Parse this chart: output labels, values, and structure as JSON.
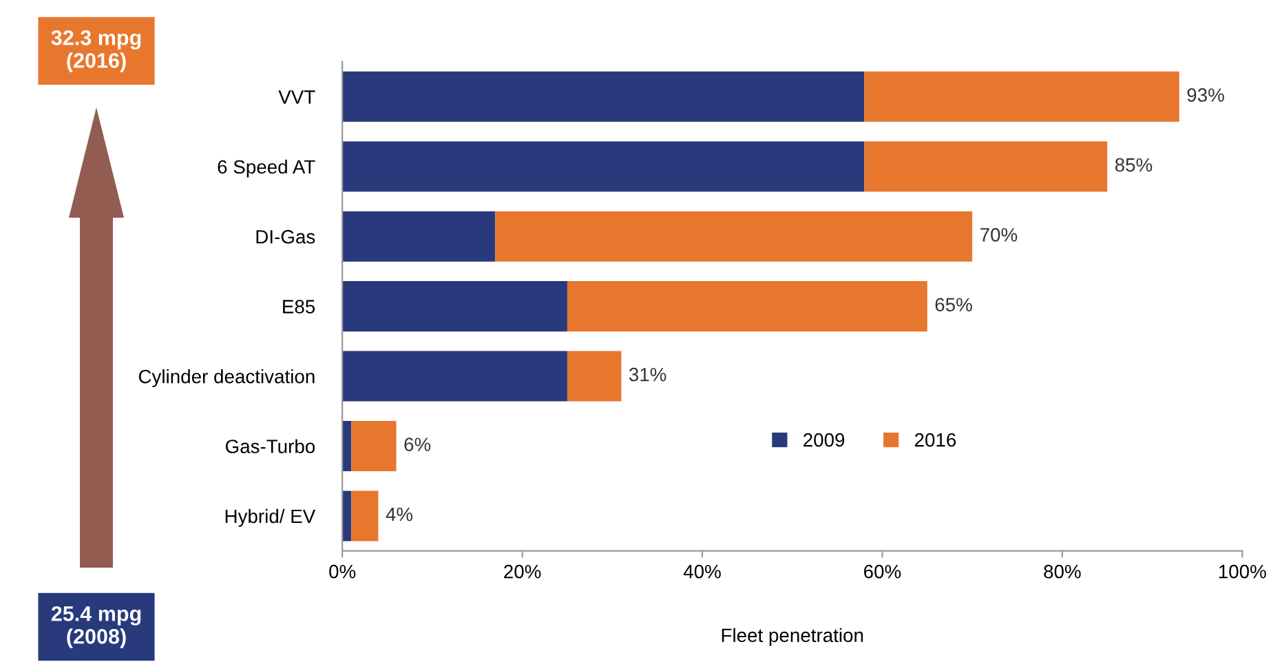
{
  "chart_data": {
    "type": "bar",
    "orientation": "horizontal",
    "stacked": true,
    "categories": [
      "VVT",
      "6 Speed AT",
      "DI-Gas",
      "E85",
      "Cylinder deactivation",
      "Gas-Turbo",
      "Hybrid/ EV"
    ],
    "series": [
      {
        "name": "2009",
        "color": "#283a7c",
        "values": [
          58,
          58,
          17,
          25,
          25,
          1,
          1
        ]
      },
      {
        "name": "2016",
        "color": "#e8772e",
        "values": [
          35,
          27,
          53,
          40,
          6,
          5,
          3
        ]
      }
    ],
    "totals": [
      "93%",
      "85%",
      "70%",
      "65%",
      "31%",
      "6%",
      "4%"
    ],
    "xlim": [
      0,
      100
    ],
    "xticks": [
      {
        "value": 0,
        "label": "0%"
      },
      {
        "value": 20,
        "label": "20%"
      },
      {
        "value": 40,
        "label": "40%"
      },
      {
        "value": 60,
        "label": "60%"
      },
      {
        "value": 80,
        "label": "80%"
      },
      {
        "value": 100,
        "label": "100%"
      }
    ],
    "xlabel": "Fleet penetration",
    "legend": "lower center",
    "grid": false,
    "annotations": [
      "32.3 mpg\n(2016)",
      "25.4 mpg\n(2008)"
    ]
  }
}
